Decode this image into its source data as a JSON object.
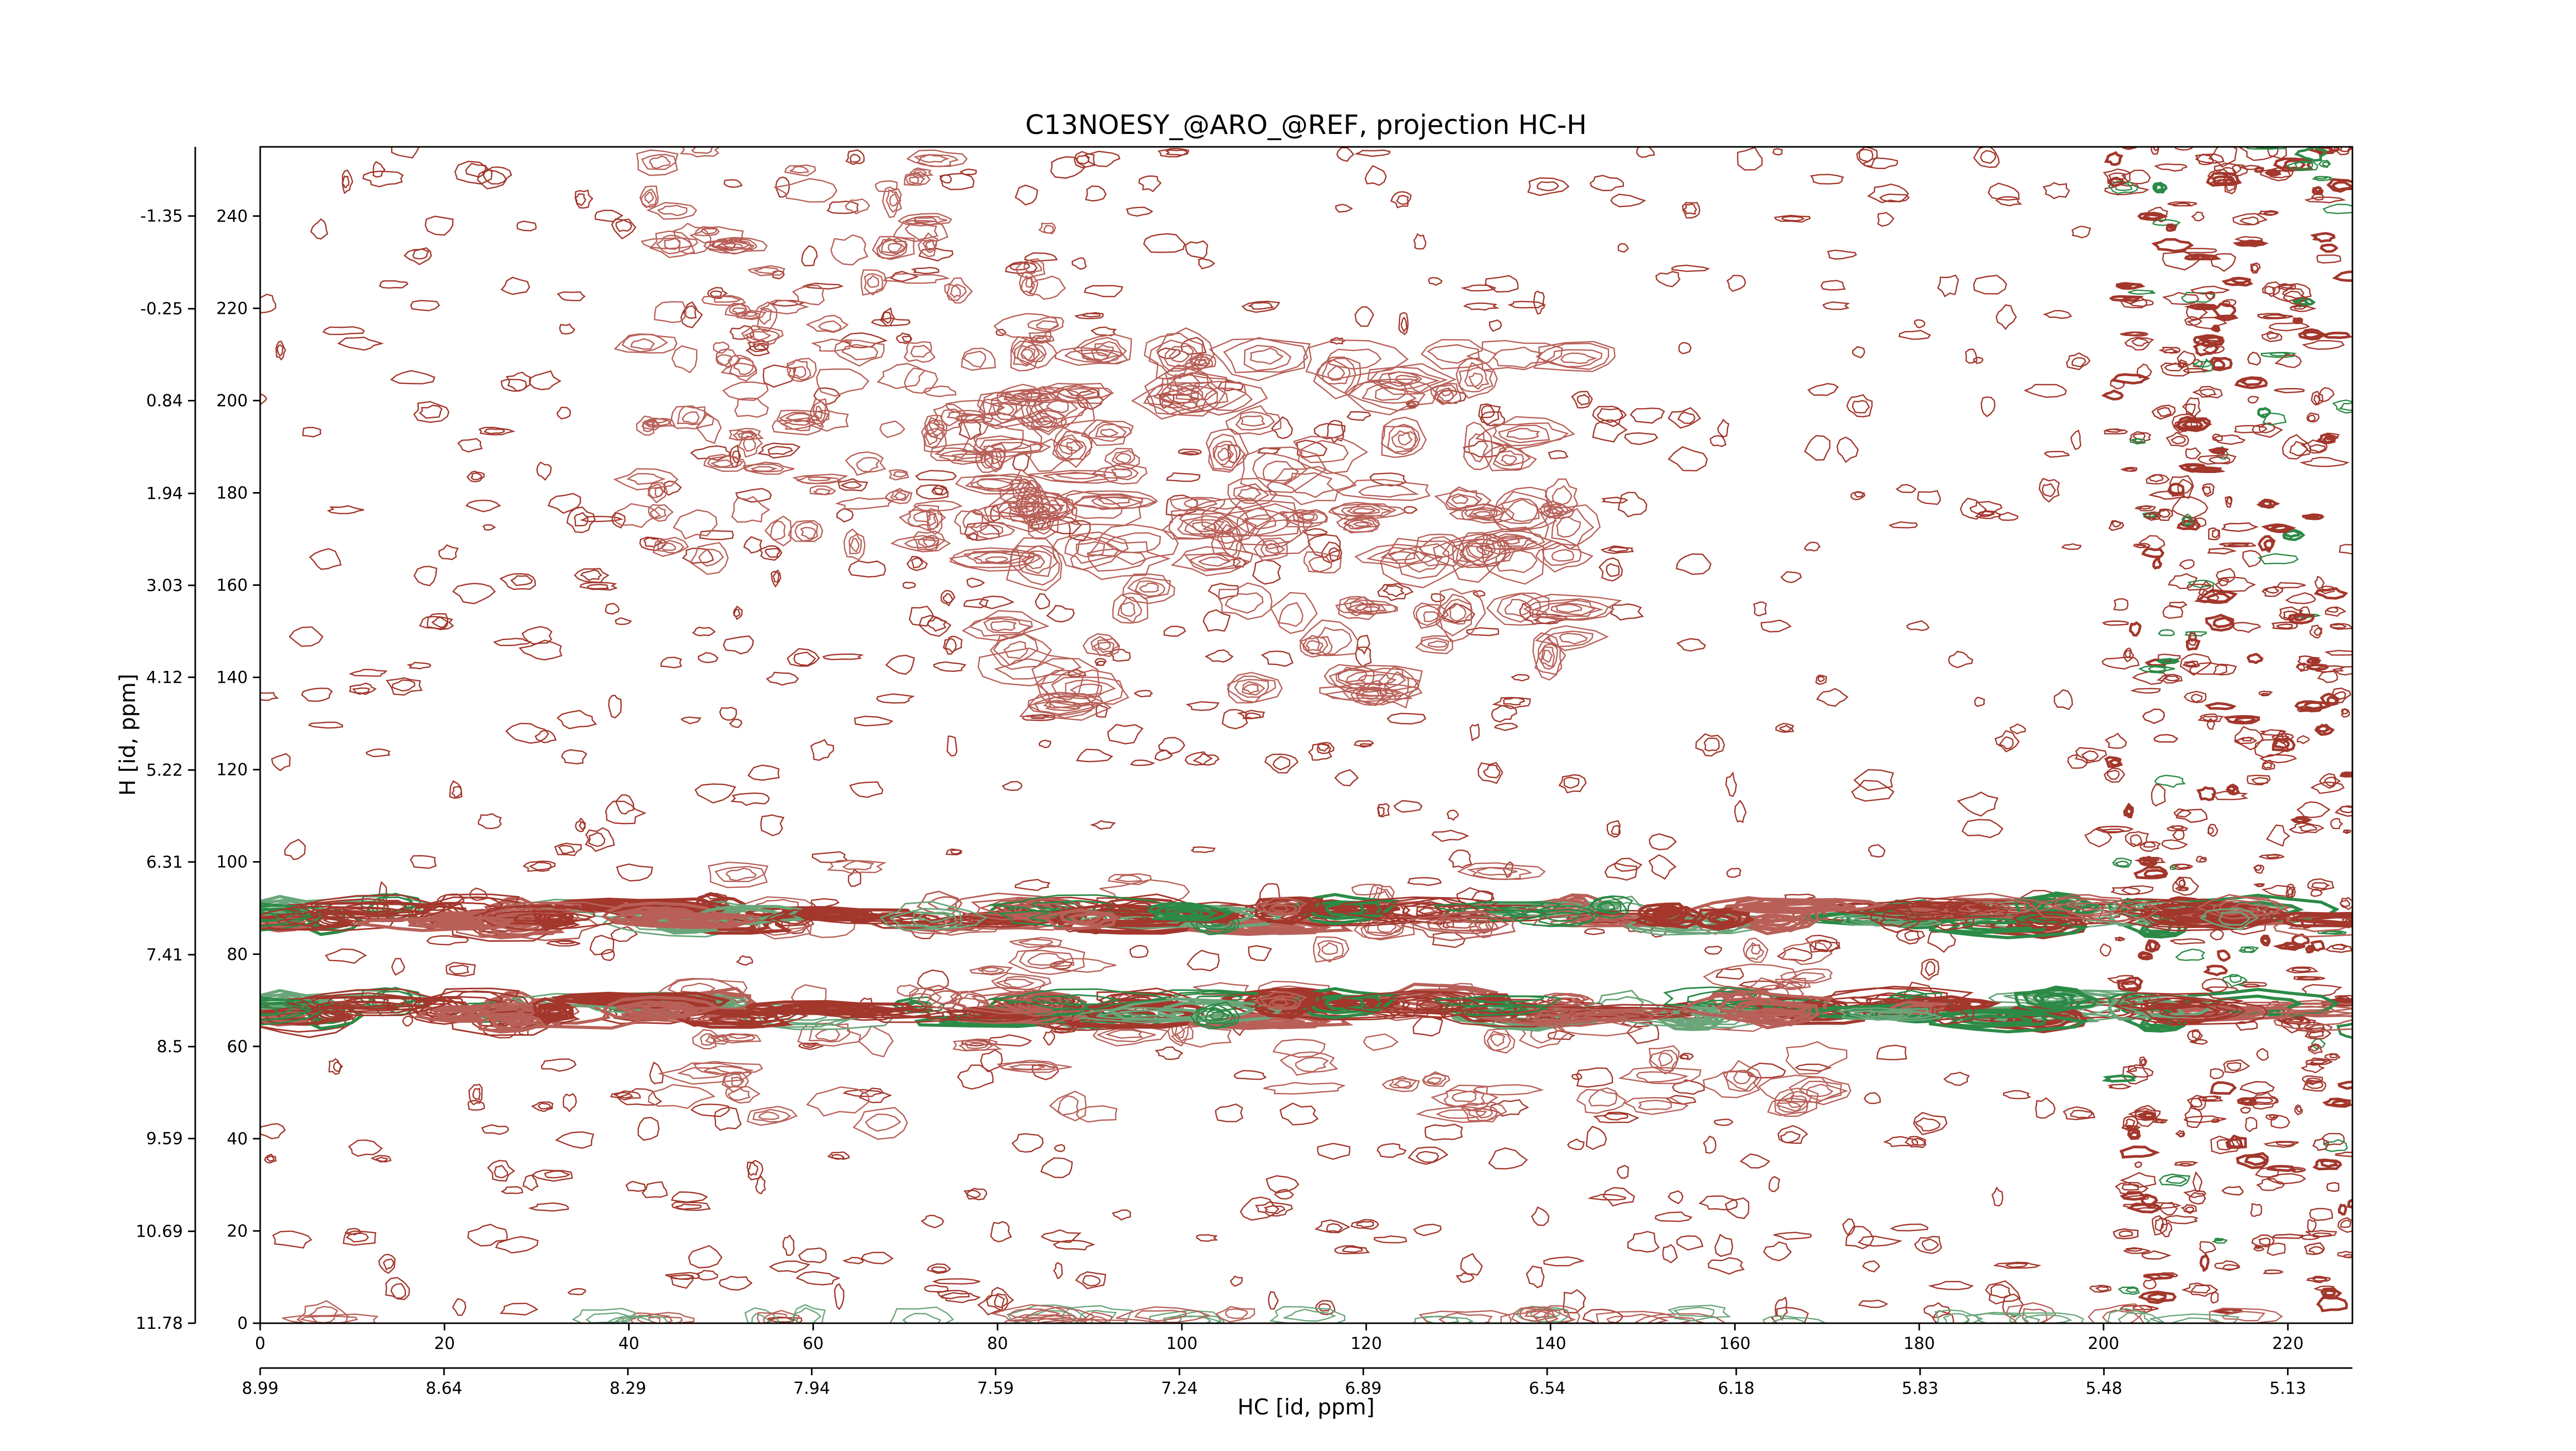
{
  "chart_data": {
    "type": "contour",
    "title": "C13NOESY_@ARO_@REF, projection HC-H",
    "xlabel": "HC [id, ppm]",
    "ylabel": "H [id, ppm]",
    "xlim": [
      0,
      227
    ],
    "xticks": [
      0,
      20,
      40,
      60,
      80,
      100,
      120,
      140,
      160,
      180,
      200,
      220
    ],
    "x2lim": [
      8.99,
      5.007
    ],
    "x2ticks": [
      8.99,
      8.64,
      8.29,
      7.94,
      7.59,
      7.24,
      6.89,
      6.54,
      6.18,
      5.83,
      5.48,
      5.13
    ],
    "ylim": [
      0,
      255
    ],
    "yticks": [
      0,
      20,
      40,
      60,
      80,
      100,
      120,
      140,
      160,
      180,
      200,
      220,
      240
    ],
    "y2lim": [
      11.78,
      -2.17
    ],
    "y2ticks": [
      11.78,
      10.69,
      9.59,
      8.5,
      7.41,
      6.31,
      5.22,
      4.12,
      3.03,
      1.94,
      0.84,
      -0.25,
      -1.35
    ]
  }
}
